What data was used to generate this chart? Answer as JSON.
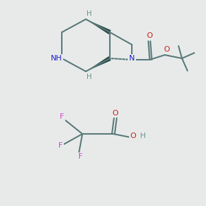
{
  "background_color": "#e8eaea",
  "fig_size": [
    3.0,
    3.0
  ],
  "dpi": 100,
  "bond_color": "#5a7878",
  "bond_lw": 1.5,
  "atom_colors": {
    "N": "#1a1acc",
    "NH": "#1a1acc",
    "O": "#cc1a1a",
    "H": "#6a9090",
    "F": "#cc44cc"
  }
}
